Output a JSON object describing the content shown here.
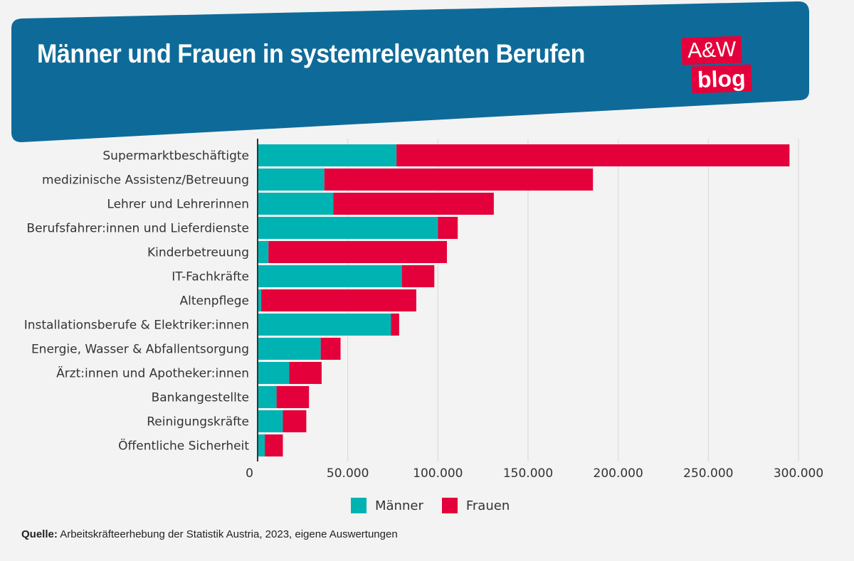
{
  "header": {
    "title": "Männer und Frauen in systemrelevanten Berufen",
    "logo_line1": "A&W",
    "logo_line2": "blog"
  },
  "colors": {
    "banner": "#0e6b99",
    "men": "#00b3b3",
    "women": "#e4003a",
    "background": "#f3f3f3"
  },
  "chart_data": {
    "type": "bar",
    "orientation": "horizontal",
    "stacked": true,
    "categories": [
      "Supermarktbeschäftigte",
      "medizinische Assistenz/Betreuung",
      "Lehrer und Lehrerinnen",
      "Berufsfahrer:innen und Lieferdienste",
      "Kinderbetreuung",
      "IT-Fachkräfte",
      "Altenpflege",
      "Installationsberufe & Elektriker:innen",
      "Energie, Wasser & Abfallentsorgung",
      "Ärzt:innen und Apotheker:innen",
      "Bankangestellte",
      "Reinigungskräfte",
      "Öffentliche Sicherheit"
    ],
    "series": [
      {
        "name": "Männer",
        "color": "#00b3b3",
        "values": [
          77000,
          37000,
          42000,
          100000,
          6000,
          80000,
          2000,
          74000,
          35000,
          17500,
          10500,
          14000,
          4000
        ]
      },
      {
        "name": "Frauen",
        "color": "#e4003a",
        "values": [
          218000,
          149000,
          89000,
          11000,
          99000,
          18000,
          86000,
          4500,
          11000,
          18000,
          18000,
          13000,
          10000
        ]
      }
    ],
    "xlim": [
      0,
      300000
    ],
    "xticks": [
      0,
      50000,
      100000,
      150000,
      200000,
      250000,
      300000
    ],
    "xtick_labels": [
      "0",
      "50.000",
      "100.000",
      "150.000",
      "200.000",
      "250.000",
      "300.000"
    ],
    "grid": true,
    "legend_position": "bottom-center"
  },
  "legend": {
    "men": "Männer",
    "women": "Frauen"
  },
  "source": {
    "label": "Quelle:",
    "text": " Arbeitskräfteerhebung der Statistik Austria, 2023, eigene Auswertungen"
  }
}
